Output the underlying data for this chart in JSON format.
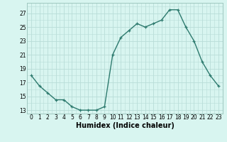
{
  "x": [
    0,
    1,
    2,
    3,
    4,
    5,
    6,
    7,
    8,
    9,
    10,
    11,
    12,
    13,
    14,
    15,
    16,
    17,
    18,
    19,
    20,
    21,
    22,
    23
  ],
  "y": [
    18,
    16.5,
    15.5,
    14.5,
    14.5,
    13.5,
    13,
    13,
    13,
    13.5,
    21,
    23.5,
    24.5,
    25.5,
    25,
    25.5,
    26,
    27.5,
    27.5,
    25,
    23,
    20,
    18,
    16.5
  ],
  "line_color": "#2d7a6e",
  "marker": "+",
  "marker_color": "#2d7a6e",
  "bg_color": "#d8f5f0",
  "grid_color": "#b8ddd8",
  "xlabel": "Humidex (Indice chaleur)",
  "ylim": [
    12.5,
    28.5
  ],
  "xlim": [
    -0.5,
    23.5
  ],
  "yticks": [
    13,
    15,
    17,
    19,
    21,
    23,
    25,
    27
  ],
  "xticks": [
    0,
    1,
    2,
    3,
    4,
    5,
    6,
    7,
    8,
    9,
    10,
    11,
    12,
    13,
    14,
    15,
    16,
    17,
    18,
    19,
    20,
    21,
    22,
    23
  ],
  "tick_fontsize": 5.5,
  "xlabel_fontsize": 7,
  "line_width": 1.0,
  "marker_size": 3,
  "marker_edge_width": 0.9
}
